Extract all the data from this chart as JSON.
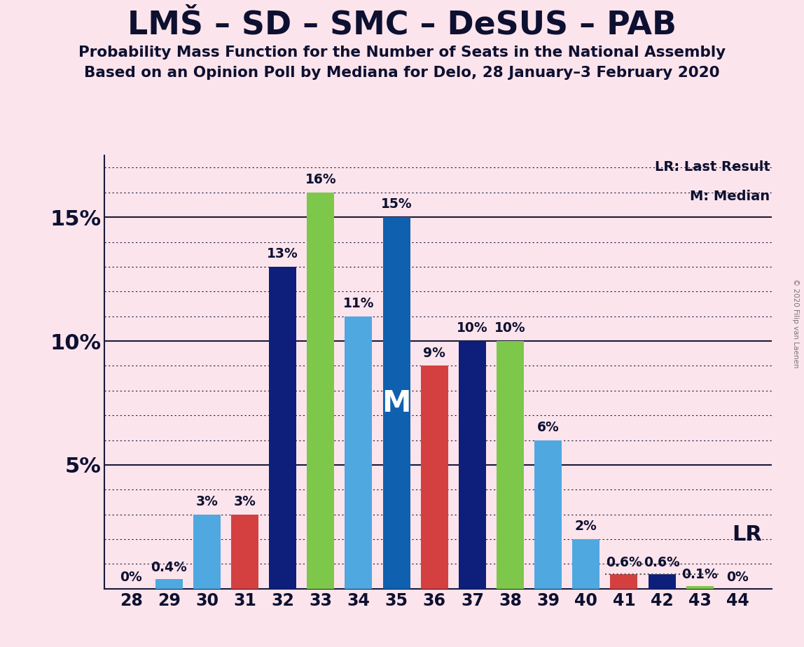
{
  "title": "LMŠ – SD – SMC – DeSUS – PAB",
  "subtitle1": "Probability Mass Function for the Number of Seats in the National Assembly",
  "subtitle2": "Based on an Opinion Poll by Mediana for Delo, 28 January–3 February 2020",
  "copyright": "© 2020 Filip van Laenen",
  "seats": [
    28,
    29,
    30,
    31,
    32,
    33,
    34,
    35,
    36,
    37,
    38,
    39,
    40,
    41,
    42,
    43,
    44
  ],
  "values": [
    0.0,
    0.4,
    3.0,
    3.0,
    13.0,
    16.0,
    11.0,
    15.0,
    9.0,
    10.0,
    10.0,
    6.0,
    2.0,
    0.6,
    0.6,
    0.1,
    0.0
  ],
  "colors": [
    "#7dc84a",
    "#4fa8e0",
    "#4fa8e0",
    "#d44040",
    "#0d1f7a",
    "#7dc84a",
    "#4fa8e0",
    "#1060b0",
    "#d44040",
    "#0d1f7a",
    "#7dc84a",
    "#4fa8e0",
    "#4fa8e0",
    "#d44040",
    "#0d1f7a",
    "#7dc84a",
    "#7dc84a"
  ],
  "median_seat": 35,
  "background_color": "#fce4ec",
  "ylim_max": 17.5,
  "major_yticks": [
    0,
    5,
    10,
    15
  ],
  "minor_yticks": [
    1,
    2,
    3,
    4,
    6,
    7,
    8,
    9,
    11,
    12,
    13,
    14,
    16,
    17
  ],
  "legend_lr": "LR: Last Result",
  "legend_m": "M: Median",
  "lr_label": "LR",
  "m_label": "M"
}
